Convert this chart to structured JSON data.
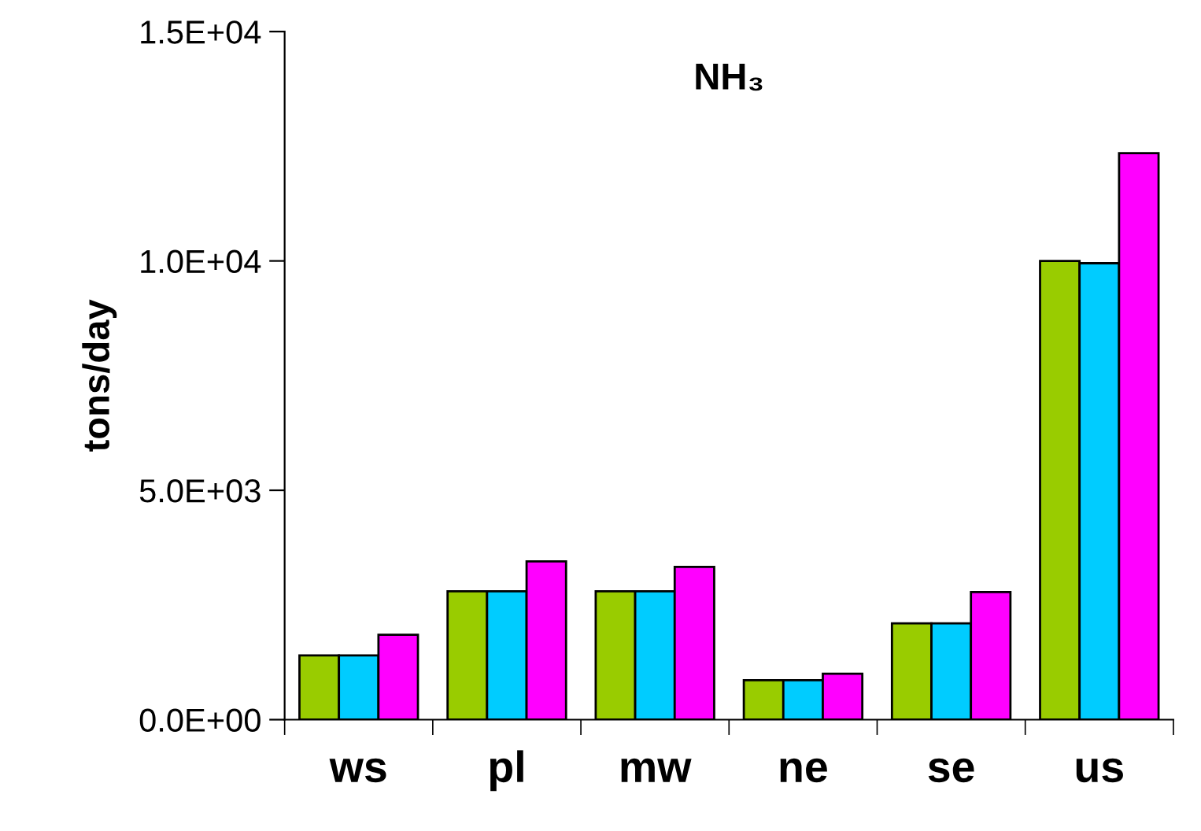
{
  "chart_data": {
    "type": "bar",
    "title": "NH₃",
    "ylabel": "tons/day",
    "categories": [
      "ws",
      "pl",
      "mw",
      "ne",
      "se",
      "us"
    ],
    "series": [
      {
        "color": "#99cc00",
        "values": [
          1400,
          2800,
          2800,
          860,
          2100,
          10000
        ]
      },
      {
        "color": "#00ccff",
        "values": [
          1400,
          2800,
          2800,
          860,
          2100,
          9950
        ]
      },
      {
        "color": "#ff00ff",
        "values": [
          1850,
          3450,
          3330,
          1000,
          2780,
          12350
        ]
      }
    ],
    "ylim": [
      0,
      15000
    ],
    "yticks": [
      {
        "value": 0,
        "label": "0.0E+00"
      },
      {
        "value": 5000,
        "label": "5.0E+03"
      },
      {
        "value": 10000,
        "label": "1.0E+04"
      },
      {
        "value": 15000,
        "label": "1.5E+04"
      }
    ],
    "grid": false,
    "legend": false
  }
}
